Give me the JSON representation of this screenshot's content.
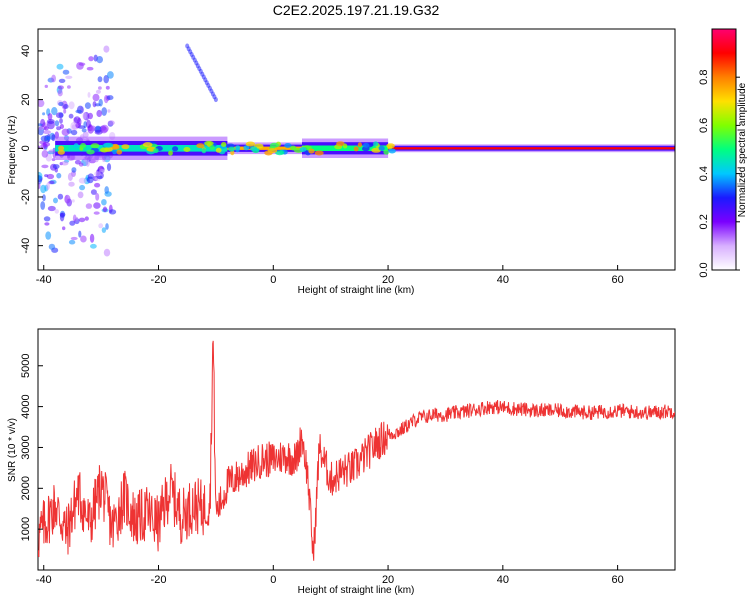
{
  "chart_data": [
    {
      "type": "heatmap",
      "title": "C2E2.2025.197.21.19.G32",
      "xlabel": "Height of straight line (km)",
      "ylabel": "Frequency (Hz)",
      "xlim": [
        -41,
        70
      ],
      "ylim": [
        -50,
        49
      ],
      "x_ticks": [
        -40,
        -20,
        0,
        20,
        40,
        60
      ],
      "y_ticks": [
        -40,
        -20,
        0,
        20,
        40
      ],
      "colorbar": {
        "label": "Normalized spectral amplitude",
        "range": [
          0,
          1
        ],
        "ticks": [
          0.0,
          0.2,
          0.4,
          0.6,
          0.8
        ],
        "colors": [
          "#ffffff",
          "#d8b0ff",
          "#7a00ff",
          "#1a1aff",
          "#00c8ff",
          "#00ff80",
          "#80ff00",
          "#ffe000",
          "#ff8000",
          "#ff0000",
          "#ff0070"
        ]
      },
      "main_band": {
        "frequency": 0,
        "segments": [
          {
            "x": [
              -38,
              -8
            ],
            "half_width": 3,
            "amplitude": 0.45
          },
          {
            "x": [
              -8,
              5
            ],
            "half_width": 1.5,
            "amplitude": 0.75
          },
          {
            "x": [
              5,
              20
            ],
            "half_width": 2.5,
            "amplitude": 0.5
          },
          {
            "x": [
              20,
              70
            ],
            "half_width": 1,
            "amplitude": 0.9
          }
        ]
      },
      "scatter_region": {
        "x": [
          -41,
          -28
        ],
        "y": [
          -45,
          45
        ],
        "amplitude": 0.3
      },
      "diagonal_streak": {
        "x": [
          -15,
          -10
        ],
        "y": [
          42,
          20
        ],
        "amplitude": 0.3
      }
    },
    {
      "type": "line",
      "xlabel": "Height of straight line (km)",
      "ylabel": "SNR (10 * v/v)",
      "xlim": [
        -41,
        70
      ],
      "ylim": [
        0,
        5900
      ],
      "x_ticks": [
        -40,
        -20,
        0,
        20,
        40,
        60
      ],
      "y_ticks": [
        1000,
        2000,
        3000,
        4000,
        5000
      ],
      "color": "#ee3333",
      "series": [
        {
          "x": [
            -41,
            -38,
            -36,
            -34,
            -32,
            -30,
            -28,
            -26,
            -24,
            -22,
            -20,
            -18,
            -16,
            -14,
            -12,
            -11,
            -10.5,
            -10,
            -9,
            -8,
            -6,
            -4,
            -2,
            0,
            2,
            4,
            5,
            6,
            7,
            8,
            9,
            10,
            12,
            14,
            16,
            18,
            20,
            22,
            25,
            28,
            30,
            34,
            38,
            42,
            46,
            50,
            55,
            60,
            65,
            70
          ],
          "values": [
            800,
            1600,
            900,
            1900,
            1100,
            2100,
            1000,
            1800,
            1200,
            1400,
            1100,
            2000,
            1300,
            1600,
            1500,
            1800,
            5800,
            1400,
            1700,
            2100,
            2300,
            2500,
            2700,
            2700,
            2800,
            2700,
            3300,
            2300,
            300,
            3000,
            2600,
            2200,
            2400,
            2500,
            2800,
            3100,
            3300,
            3400,
            3700,
            3800,
            3800,
            3900,
            4000,
            3950,
            3900,
            3900,
            3850,
            3900,
            3850,
            3900
          ]
        }
      ]
    }
  ]
}
